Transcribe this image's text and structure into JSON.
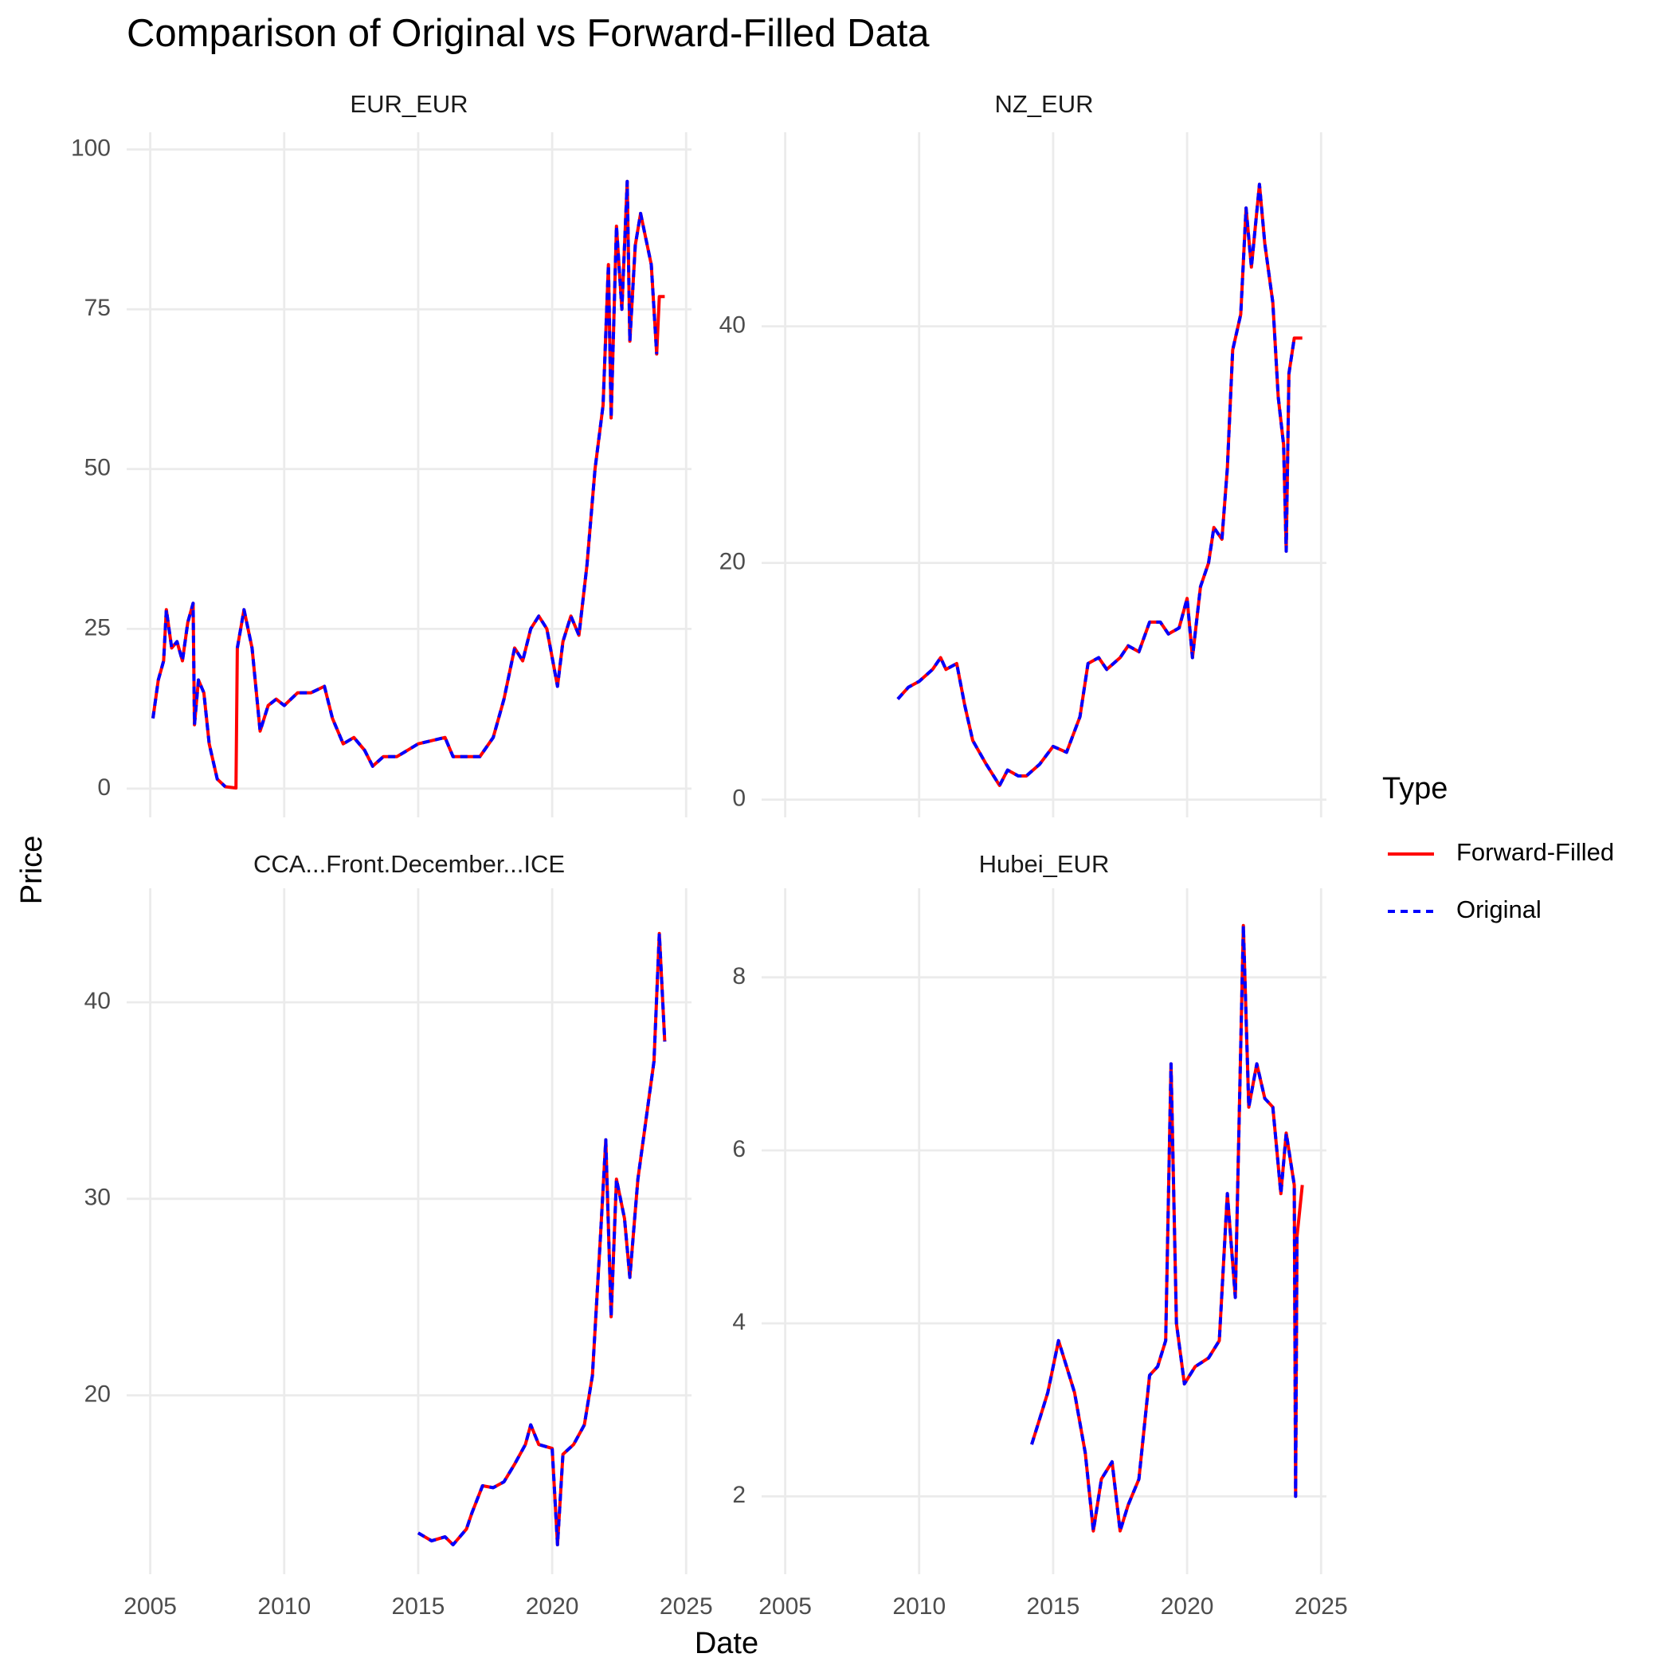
{
  "chart_data": {
    "type": "line",
    "title": "Comparison of Original vs Forward-Filled Data",
    "x_label": "Date",
    "y_label": "Price",
    "legend_title": "Type",
    "grid": true,
    "facets": [
      {
        "title": "EUR_EUR",
        "x": [
          2005.1,
          2005.3,
          2005.5,
          2005.6,
          2005.8,
          2006.0,
          2006.2,
          2006.4,
          2006.6,
          2006.65,
          2006.8,
          2007.0,
          2007.2,
          2007.5,
          2007.8,
          2008.2,
          2008.25,
          2008.5,
          2008.8,
          2009.1,
          2009.4,
          2009.7,
          2010.0,
          2010.5,
          2011.0,
          2011.5,
          2011.8,
          2012.2,
          2012.6,
          2013.0,
          2013.3,
          2013.7,
          2014.2,
          2014.6,
          2015.0,
          2015.5,
          2016.0,
          2016.3,
          2016.8,
          2017.3,
          2017.8,
          2018.2,
          2018.6,
          2018.9,
          2019.2,
          2019.5,
          2019.8,
          2020.2,
          2020.4,
          2020.7,
          2021.0,
          2021.3,
          2021.6,
          2021.9,
          2022.1,
          2022.2,
          2022.4,
          2022.6,
          2022.8,
          2022.9,
          2023.1,
          2023.3,
          2023.5,
          2023.7,
          2023.9,
          2024.0,
          2024.2
        ],
        "xlim": [
          2004.12,
          2025.2
        ],
        "xticks": [
          2005,
          2010,
          2015,
          2020,
          2025
        ],
        "ylim": [
          -4.5,
          102.7
        ],
        "yticks": [
          0,
          25,
          50,
          75,
          100
        ],
        "series": [
          {
            "name": "Forward-Filled",
            "color": "#ff0000",
            "linestyle": "solid",
            "values": [
              11,
              17,
              20,
              28,
              22,
              23,
              20,
              26,
              29,
              10,
              17,
              15,
              7,
              1.5,
              0.3,
              0.1,
              22,
              28,
              22,
              9,
              13,
              14,
              13,
              15,
              15,
              16,
              11,
              7,
              8,
              6,
              3.5,
              5,
              5,
              6,
              7,
              7.5,
              8,
              5,
              5,
              5,
              8,
              14,
              22,
              20,
              25,
              27,
              25,
              16,
              23,
              27,
              24,
              35,
              50,
              60,
              82,
              58,
              88,
              75,
              95,
              70,
              85,
              90,
              86,
              82,
              68,
              77,
              77
            ]
          },
          {
            "name": "Original",
            "color": "#0000ff",
            "linestyle": "dashed",
            "values": [
              11,
              17,
              20,
              28,
              22,
              23,
              20,
              26,
              29,
              10,
              17,
              15,
              7,
              1.5,
              0.3,
              null,
              22,
              28,
              22,
              9,
              13,
              14,
              13,
              15,
              15,
              16,
              11,
              7,
              8,
              6,
              3.5,
              5,
              5,
              6,
              7,
              7.5,
              8,
              5,
              5,
              5,
              8,
              14,
              22,
              20,
              25,
              27,
              25,
              16,
              23,
              27,
              24,
              35,
              50,
              60,
              82,
              58,
              88,
              75,
              95,
              70,
              85,
              90,
              86,
              82,
              68,
              null,
              null
            ]
          }
        ]
      },
      {
        "title": "NZ_EUR",
        "x": [
          2009.2,
          2009.6,
          2010.0,
          2010.5,
          2010.8,
          2011.0,
          2011.4,
          2011.7,
          2012.0,
          2012.5,
          2013.0,
          2013.3,
          2013.7,
          2014.0,
          2014.5,
          2015.0,
          2015.5,
          2016.0,
          2016.3,
          2016.7,
          2017.0,
          2017.5,
          2017.8,
          2018.2,
          2018.6,
          2019.0,
          2019.3,
          2019.7,
          2020.0,
          2020.2,
          2020.5,
          2020.8,
          2021.0,
          2021.3,
          2021.5,
          2021.7,
          2022.0,
          2022.2,
          2022.4,
          2022.7,
          2022.9,
          2023.2,
          2023.4,
          2023.6,
          2023.7,
          2023.8,
          2024.0,
          2024.3
        ],
        "xlim": [
          2004.12,
          2025.2
        ],
        "xticks": [
          2005,
          2010,
          2015,
          2020,
          2025
        ],
        "ylim": [
          -1.5,
          56.4
        ],
        "yticks": [
          0,
          20,
          40
        ],
        "series": [
          {
            "name": "Forward-Filled",
            "color": "#ff0000",
            "linestyle": "solid",
            "values": [
              8.5,
              9.5,
              10,
              11,
              12,
              11,
              11.5,
              8,
              5,
              3,
              1.2,
              2.5,
              2,
              2,
              3,
              4.5,
              4,
              7,
              11.5,
              12,
              11,
              12,
              13,
              12.5,
              15,
              15,
              14,
              14.5,
              17,
              12,
              18,
              20,
              23,
              22,
              28,
              38,
              41,
              50,
              45,
              52,
              47,
              42,
              34,
              30,
              21,
              36,
              39,
              39
            ]
          },
          {
            "name": "Original",
            "color": "#0000ff",
            "linestyle": "dashed",
            "values": [
              8.5,
              9.5,
              10,
              11,
              12,
              11,
              11.5,
              8,
              5,
              3,
              1.2,
              2.5,
              2,
              2,
              3,
              4.5,
              4,
              7,
              11.5,
              12,
              11,
              12,
              13,
              12.5,
              15,
              15,
              14,
              14.5,
              17,
              12,
              18,
              20,
              23,
              22,
              28,
              38,
              41,
              50,
              45,
              52,
              47,
              42,
              34,
              30,
              21,
              36,
              39,
              null
            ]
          }
        ]
      },
      {
        "title": "CCA...Front.December...ICE",
        "x": [
          2015.0,
          2015.5,
          2016.0,
          2016.3,
          2016.8,
          2017.0,
          2017.4,
          2017.8,
          2018.2,
          2018.6,
          2019.0,
          2019.2,
          2019.5,
          2020.0,
          2020.2,
          2020.4,
          2020.8,
          2021.2,
          2021.5,
          2021.8,
          2022.0,
          2022.2,
          2022.4,
          2022.7,
          2022.9,
          2023.2,
          2023.5,
          2023.8,
          2024.0,
          2024.2
        ],
        "xlim": [
          2004.12,
          2025.2
        ],
        "xticks": [
          2005,
          2010,
          2015,
          2020,
          2025
        ],
        "ylim": [
          10.9,
          45.8
        ],
        "yticks": [
          20,
          30,
          40
        ],
        "series": [
          {
            "name": "Forward-Filled",
            "color": "#ff0000",
            "linestyle": "solid",
            "values": [
              13,
              12.6,
              12.8,
              12.4,
              13.2,
              14,
              15.4,
              15.3,
              15.6,
              16.5,
              17.5,
              18.5,
              17.5,
              17.3,
              12.4,
              17,
              17.5,
              18.5,
              21,
              28,
              33,
              24,
              31,
              29,
              26,
              31,
              34,
              37,
              43.5,
              38
            ]
          },
          {
            "name": "Original",
            "color": "#0000ff",
            "linestyle": "dashed",
            "values": [
              13,
              12.6,
              12.8,
              12.4,
              13.2,
              14,
              15.4,
              15.3,
              15.6,
              16.5,
              17.5,
              18.5,
              17.5,
              17.3,
              12.4,
              17,
              17.5,
              18.5,
              21,
              28,
              33,
              24,
              31,
              29,
              26,
              31,
              34,
              37,
              43.5,
              38
            ]
          }
        ]
      },
      {
        "title": "Hubei_EUR",
        "x": [
          2014.2,
          2014.4,
          2014.8,
          2015.2,
          2015.5,
          2015.8,
          2016.2,
          2016.5,
          2016.8,
          2017.2,
          2017.5,
          2017.8,
          2018.2,
          2018.6,
          2018.9,
          2019.2,
          2019.4,
          2019.6,
          2019.9,
          2020.3,
          2020.8,
          2021.2,
          2021.5,
          2021.8,
          2022.1,
          2022.3,
          2022.6,
          2022.9,
          2023.2,
          2023.5,
          2023.7,
          2024.0,
          2024.05,
          2024.1,
          2024.3
        ],
        "xlim": [
          2004.12,
          2025.2
        ],
        "xticks": [
          2005,
          2010,
          2015,
          2020,
          2025
        ],
        "ylim": [
          1.1,
          9.03
        ],
        "yticks": [
          2,
          4,
          6,
          8
        ],
        "series": [
          {
            "name": "Forward-Filled",
            "color": "#ff0000",
            "linestyle": "solid",
            "values": [
              2.6,
              2.8,
              3.2,
              3.8,
              3.5,
              3.2,
              2.5,
              1.6,
              2.2,
              2.4,
              1.6,
              1.9,
              2.2,
              3.4,
              3.5,
              3.8,
              7.0,
              4.0,
              3.3,
              3.5,
              3.6,
              3.8,
              5.5,
              4.3,
              8.6,
              6.5,
              7.0,
              6.6,
              6.5,
              5.5,
              6.2,
              5.6,
              2.0,
              5.0,
              5.6
            ]
          },
          {
            "name": "Original",
            "color": "#0000ff",
            "linestyle": "dashed",
            "values": [
              2.6,
              2.8,
              3.2,
              3.8,
              3.5,
              3.2,
              2.5,
              1.6,
              2.2,
              2.4,
              1.6,
              1.9,
              2.2,
              3.4,
              3.5,
              3.8,
              7.0,
              4.0,
              3.3,
              3.5,
              3.6,
              3.8,
              5.5,
              4.3,
              8.6,
              6.5,
              7.0,
              6.6,
              6.5,
              5.5,
              6.2,
              5.6,
              2.0,
              5.0,
              null
            ]
          }
        ]
      }
    ]
  }
}
